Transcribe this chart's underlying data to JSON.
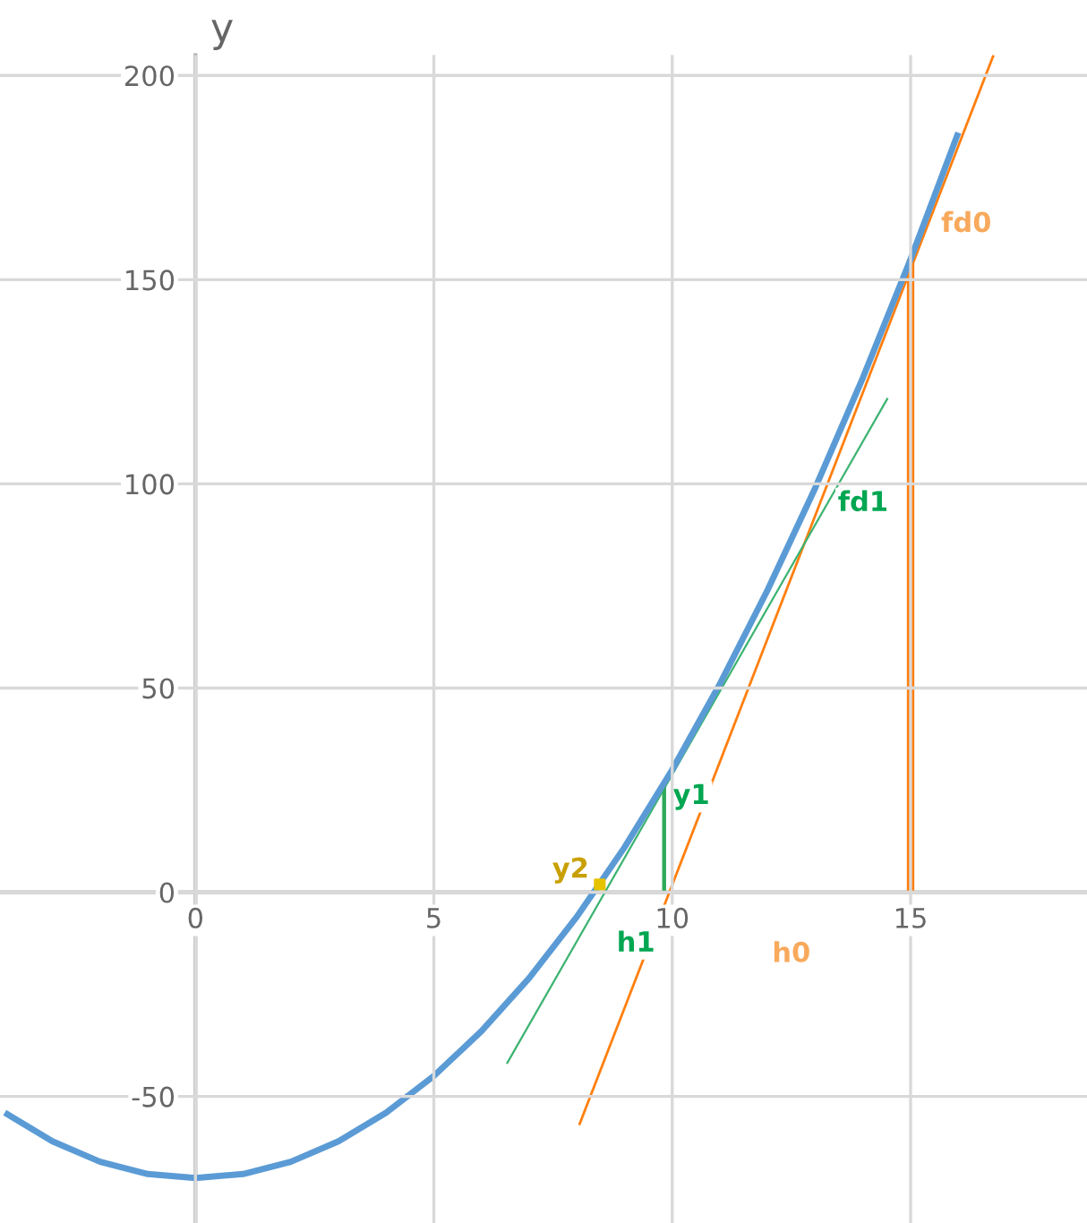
{
  "chart_data": {
    "type": "line",
    "ylabel": "y",
    "xlim": [
      -4.1,
      18.7
    ],
    "ylim": [
      -81,
      205
    ],
    "xticks": [
      0,
      5,
      10,
      15
    ],
    "yticks": [
      -50,
      0,
      50,
      100,
      150,
      200
    ],
    "grid": true,
    "legend": false,
    "series": [
      {
        "color": "#5b9bd5",
        "x": [
          -4,
          -3,
          -2,
          -1,
          0,
          1,
          2,
          3,
          4,
          5,
          6,
          7,
          8,
          9,
          10,
          11,
          12,
          13,
          14,
          15,
          16
        ],
        "values": [
          -54,
          -61,
          -66,
          -69,
          -70,
          -69,
          -66,
          -61,
          -54,
          -45,
          -34,
          -21,
          -6,
          11,
          30,
          51,
          74,
          99,
          126,
          155,
          186
        ]
      },
      {
        "color": "#ff7f0e",
        "x": [
          8.05,
          16.74
        ],
        "values": [
          -57,
          205
        ]
      },
      {
        "color": "#3cb371",
        "x": [
          6.53,
          14.52
        ],
        "values": [
          -42,
          121
        ]
      },
      {
        "color": "#ff7f0e",
        "x": [
          15,
          15
        ],
        "values": [
          0,
          155
        ]
      },
      {
        "color": "#2eaa5a",
        "x": [
          9.83,
          9.83
        ],
        "values": [
          0,
          26.7
        ]
      },
      {
        "type": "scatter",
        "color": "#e6c300",
        "x": [
          8.48
        ],
        "values": [
          1.9
        ]
      }
    ],
    "annotations": [
      "fd0",
      "fd1",
      "y1",
      "y2",
      "h1",
      "h0"
    ]
  }
}
